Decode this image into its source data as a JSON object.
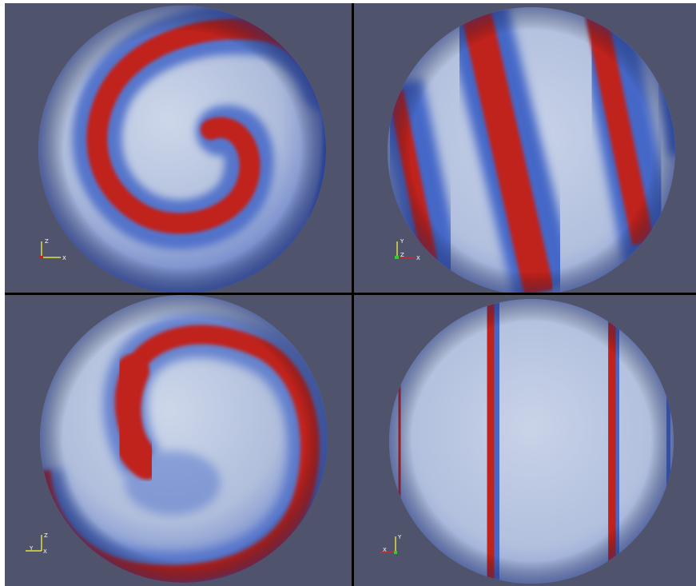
{
  "views": [
    {
      "id": "top-left",
      "axes": {
        "up": "Z",
        "right": "X",
        "corner": ""
      },
      "colors": {
        "up": "#ffff33",
        "right": "#ffff33"
      }
    },
    {
      "id": "top-right",
      "axes": {
        "up": "Y",
        "right": "X",
        "corner": "Z"
      },
      "colors": {
        "up": "#ffff33",
        "right": "#e02020"
      }
    },
    {
      "id": "bottom-left",
      "axes": {
        "up": "Z",
        "right": "X",
        "corner": "Y"
      },
      "colors": {
        "up": "#ffff33",
        "right": "#ffff33"
      }
    },
    {
      "id": "bottom-right",
      "axes": {
        "up": "Y",
        "right": "X",
        "corner": ""
      },
      "colors": {
        "up": "#ffff33",
        "right": "#e02020"
      }
    }
  ],
  "palette": {
    "background": "#4f536b",
    "band_red": "#c0241c",
    "band_blue": "#3e5fc2",
    "sphere_light": "#c7d2e6",
    "divider": "#000000"
  }
}
